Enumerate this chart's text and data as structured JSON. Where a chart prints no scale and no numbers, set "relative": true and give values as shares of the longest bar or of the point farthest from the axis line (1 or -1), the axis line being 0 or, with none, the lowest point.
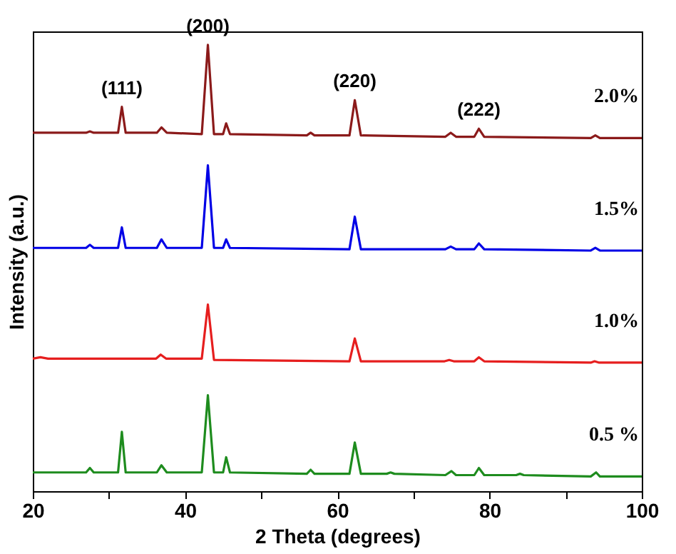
{
  "chart_data": {
    "type": "line",
    "relative": true,
    "xlabel": "2 Theta (degrees)",
    "ylabel": "Intensity (a.u.)",
    "xlim": [
      20,
      100
    ],
    "xticks": [
      20,
      {
        "value": 30,
        "label": null
      },
      40,
      {
        "value": 50,
        "label": null
      },
      60,
      {
        "value": 70,
        "label": null
      },
      80,
      {
        "value": 90,
        "label": null
      },
      100
    ],
    "grid": false,
    "legend": false,
    "tick_labels": "x",
    "marker": "none",
    "line_style": "solid",
    "annotations": [
      {
        "text": "(111)",
        "x": 31.7,
        "y": 0.861
      },
      {
        "text": "(200)",
        "x": 43,
        "y": 1.0
      },
      {
        "text": "(220)",
        "x": 62.3,
        "y": 0.876
      },
      {
        "text": "(222)",
        "x": 78.6,
        "y": 0.812
      }
    ],
    "series": [
      {
        "name": "2.0%",
        "color": "#8b1a1a",
        "x": [
          20,
          27,
          27.5,
          28,
          31.2,
          31.7,
          32.2,
          36.3,
          36.9,
          37.6,
          42.2,
          43,
          43.8,
          45,
          45.4,
          45.9,
          56,
          56.5,
          57,
          61.6,
          62.3,
          63.1,
          74.2,
          74.9,
          75.6,
          78,
          78.6,
          79.3,
          93.3,
          93.9,
          94.5,
          100
        ],
        "values": [
          0.803,
          0.803,
          0.806,
          0.803,
          0.803,
          0.861,
          0.803,
          0.803,
          0.815,
          0.803,
          0.8,
          1.0,
          0.8,
          0.8,
          0.824,
          0.8,
          0.797,
          0.803,
          0.797,
          0.797,
          0.876,
          0.797,
          0.794,
          0.803,
          0.794,
          0.794,
          0.812,
          0.794,
          0.791,
          0.797,
          0.791,
          0.791
        ]
      },
      {
        "name": "1.5%",
        "color": "#0000e6",
        "x": [
          20,
          27,
          27.5,
          28,
          31.2,
          31.7,
          32.2,
          36.3,
          36.9,
          37.6,
          42.2,
          43,
          43.8,
          45,
          45.4,
          45.9,
          61.6,
          62.3,
          63.1,
          74.2,
          74.9,
          75.6,
          78,
          78.6,
          79.3,
          93.3,
          93.9,
          94.5,
          100
        ],
        "values": [
          0.545,
          0.545,
          0.552,
          0.545,
          0.545,
          0.591,
          0.545,
          0.545,
          0.564,
          0.545,
          0.545,
          0.73,
          0.545,
          0.545,
          0.564,
          0.545,
          0.542,
          0.615,
          0.542,
          0.542,
          0.548,
          0.542,
          0.542,
          0.555,
          0.542,
          0.539,
          0.545,
          0.539,
          0.539
        ]
      },
      {
        "name": "1.0%",
        "color": "#e61e1e",
        "x": [
          20,
          21,
          22,
          36.2,
          36.8,
          37.5,
          42.2,
          43,
          43.8,
          61.6,
          62.3,
          63.1,
          74.1,
          74.7,
          75.3,
          78,
          78.6,
          79.3,
          93.3,
          93.8,
          94.4,
          100
        ],
        "values": [
          0.297,
          0.3,
          0.297,
          0.297,
          0.306,
          0.297,
          0.297,
          0.418,
          0.294,
          0.291,
          0.342,
          0.291,
          0.291,
          0.294,
          0.291,
          0.291,
          0.3,
          0.291,
          0.288,
          0.291,
          0.288,
          0.288
        ]
      },
      {
        "name": "0.5 %",
        "color": "#1e8c1e",
        "x": [
          20,
          27,
          27.5,
          28,
          31.2,
          31.7,
          32.2,
          36.3,
          36.9,
          37.6,
          42.2,
          43,
          43.8,
          45,
          45.4,
          45.9,
          56,
          56.5,
          57,
          61.6,
          62.3,
          63.1,
          66.5,
          67,
          67.5,
          74.2,
          75,
          75.6,
          78,
          78.6,
          79.3,
          83.5,
          84,
          84.5,
          93.3,
          94,
          94.5,
          100
        ],
        "values": [
          0.042,
          0.042,
          0.052,
          0.042,
          0.042,
          0.133,
          0.042,
          0.042,
          0.058,
          0.042,
          0.042,
          0.215,
          0.042,
          0.042,
          0.076,
          0.042,
          0.039,
          0.048,
          0.039,
          0.039,
          0.109,
          0.039,
          0.039,
          0.042,
          0.039,
          0.036,
          0.045,
          0.036,
          0.036,
          0.052,
          0.036,
          0.036,
          0.039,
          0.036,
          0.033,
          0.042,
          0.033,
          0.033
        ]
      }
    ]
  }
}
